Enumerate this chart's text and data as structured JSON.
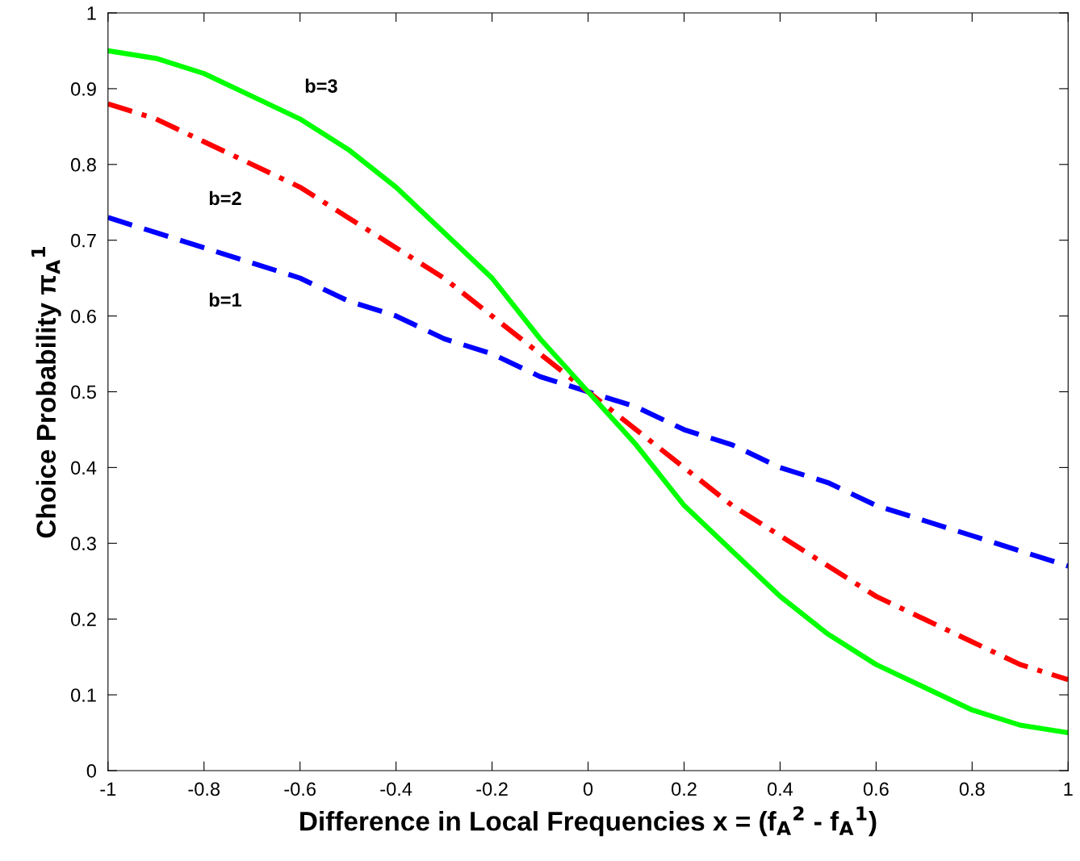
{
  "chart_data": {
    "type": "line",
    "xlabel": "Difference in Local Frequencies x = (f$_{A}$$^{2}$ - f$_{A}$$^{1}$)",
    "ylabel": "Choice Probability π$_{A}$$^{1}$",
    "x": [
      -1,
      -0.9,
      -0.8,
      -0.7,
      -0.6,
      -0.5,
      -0.4,
      -0.3,
      -0.2,
      -0.1,
      0,
      0.1,
      0.2,
      0.3,
      0.4,
      0.5,
      0.6,
      0.7,
      0.8,
      0.9,
      1
    ],
    "series": [
      {
        "name": "b=1",
        "color": "#0000ff",
        "line_style": "dashed",
        "values": [
          0.73,
          0.71,
          0.69,
          0.67,
          0.65,
          0.62,
          0.6,
          0.57,
          0.55,
          0.52,
          0.5,
          0.48,
          0.45,
          0.43,
          0.4,
          0.38,
          0.35,
          0.33,
          0.31,
          0.29,
          0.27
        ]
      },
      {
        "name": "b=2",
        "color": "#ff0000",
        "line_style": "dashdot",
        "values": [
          0.88,
          0.86,
          0.83,
          0.8,
          0.77,
          0.73,
          0.69,
          0.65,
          0.6,
          0.55,
          0.5,
          0.45,
          0.4,
          0.35,
          0.31,
          0.27,
          0.23,
          0.2,
          0.17,
          0.14,
          0.12
        ]
      },
      {
        "name": "b=3",
        "color": "#00ff00",
        "line_style": "solid",
        "values": [
          0.95,
          0.94,
          0.92,
          0.89,
          0.86,
          0.82,
          0.77,
          0.71,
          0.65,
          0.57,
          0.5,
          0.43,
          0.35,
          0.29,
          0.23,
          0.18,
          0.14,
          0.11,
          0.08,
          0.06,
          0.05
        ]
      }
    ],
    "xlim": [
      -1,
      1
    ],
    "ylim": [
      0,
      1
    ],
    "xticks": [
      -1,
      -0.8,
      -0.6,
      -0.4,
      -0.2,
      0,
      0.2,
      0.4,
      0.6,
      0.8,
      1
    ],
    "yticks": [
      0,
      0.1,
      0.2,
      0.3,
      0.4,
      0.5,
      0.6,
      0.7,
      0.8,
      0.9,
      1
    ],
    "grid": false,
    "legend": false,
    "marker": "none"
  }
}
